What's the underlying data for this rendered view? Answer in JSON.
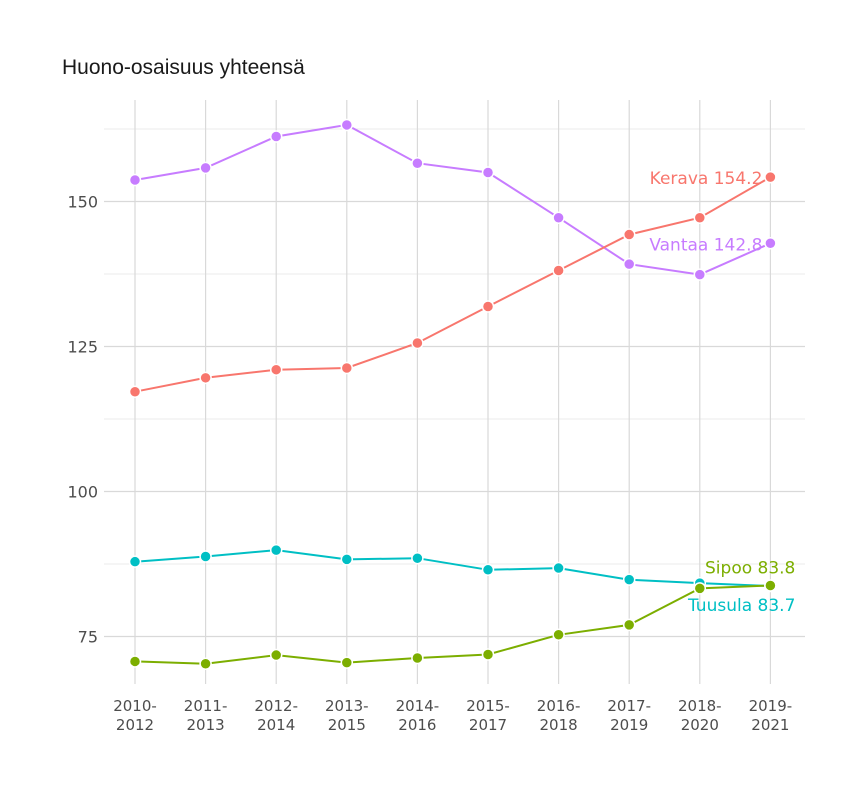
{
  "chart_data": {
    "type": "line",
    "title": "Huono-osaisuus yhteensä",
    "xlabel": "",
    "ylabel": "",
    "categories": [
      [
        "2010-",
        "2012"
      ],
      [
        "2011-",
        "2013"
      ],
      [
        "2012-",
        "2014"
      ],
      [
        "2013-",
        "2015"
      ],
      [
        "2014-",
        "2016"
      ],
      [
        "2015-",
        "2017"
      ],
      [
        "2016-",
        "2018"
      ],
      [
        "2017-",
        "2019"
      ],
      [
        "2018-",
        "2020"
      ],
      [
        "2019-",
        "2021"
      ]
    ],
    "ylim": [
      66,
      165
    ],
    "yticks": [
      75,
      100,
      125,
      150
    ],
    "grid": true,
    "legend": "none",
    "series": [
      {
        "name": "Vantaa",
        "color": "#C77CFF",
        "values": [
          153.7,
          155.8,
          161.2,
          163.2,
          156.6,
          155.0,
          147.2,
          139.2,
          137.4,
          142.8
        ],
        "end_label": "Vantaa 142.8"
      },
      {
        "name": "Kerava",
        "color": "#F8766D",
        "values": [
          117.2,
          119.6,
          121.0,
          121.3,
          125.6,
          131.9,
          138.1,
          144.3,
          147.2,
          154.2
        ],
        "end_label": "Kerava 154.2"
      },
      {
        "name": "Tuusula",
        "color": "#00BFC4",
        "values": [
          87.9,
          88.8,
          89.9,
          88.3,
          88.5,
          86.5,
          86.8,
          84.8,
          84.2,
          83.7
        ],
        "end_label": "Tuusula 83.7"
      },
      {
        "name": "Sipoo",
        "color": "#7CAE00",
        "values": [
          70.7,
          70.3,
          71.8,
          70.5,
          71.3,
          71.9,
          75.3,
          77.0,
          83.3,
          83.8
        ],
        "end_label": "Sipoo 83.8"
      }
    ]
  }
}
